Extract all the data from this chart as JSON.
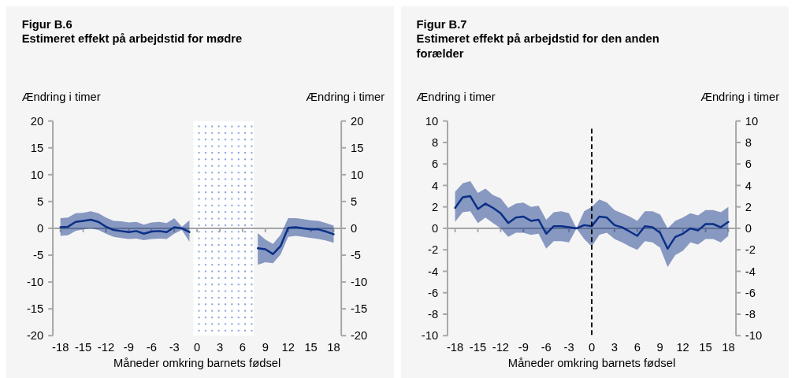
{
  "chart_data": [
    {
      "type": "line",
      "title": "Figur B.6",
      "subtitle": "Estimeret effekt på arbejdstid for mødre",
      "ylabel": "Ændring i timer",
      "y2label": "Ændring i timer",
      "xlabel": "Måneder omkring barnets fødsel",
      "x": [
        -18,
        -17,
        -16,
        -15,
        -14,
        -13,
        -12,
        -11,
        -10,
        -9,
        -8,
        -7,
        -6,
        -5,
        -4,
        -3,
        -2,
        -1,
        0,
        1,
        2,
        3,
        4,
        5,
        6,
        7,
        8,
        9,
        10,
        11,
        12,
        13,
        14,
        15,
        16,
        17,
        18
      ],
      "xlim": [
        -19,
        19
      ],
      "xticks": [
        -18,
        -15,
        -12,
        -9,
        -6,
        -3,
        0,
        3,
        6,
        9,
        12,
        15,
        18
      ],
      "ylim": [
        -20,
        20
      ],
      "yticks": [
        -20,
        -15,
        -10,
        -5,
        0,
        5,
        10,
        15,
        20
      ],
      "y2lim": [
        -20,
        20
      ],
      "y2ticks": [
        -20,
        -15,
        -10,
        -5,
        0,
        5,
        10,
        15,
        20
      ],
      "series": [
        {
          "color": "#0a2f86",
          "values": [
            0.2,
            0.3,
            1.2,
            1.4,
            1.6,
            1.2,
            0.3,
            -0.3,
            -0.5,
            -0.7,
            -0.5,
            -1.0,
            -0.6,
            -0.5,
            -0.7,
            0.2,
            0,
            -0.7,
            null,
            null,
            null,
            null,
            null,
            null,
            null,
            null,
            -3.7,
            -3.9,
            -4.8,
            -3.3,
            0.1,
            0.2,
            0,
            -0.2,
            -0.2,
            -0.6,
            -1.1
          ],
          "upper": [
            1.9,
            2.0,
            2.8,
            2.9,
            3.2,
            2.8,
            2.0,
            1.4,
            1.3,
            1.1,
            1.2,
            0.7,
            1.1,
            1.2,
            1.0,
            1.9,
            0.3,
            1.5,
            null,
            null,
            null,
            null,
            null,
            null,
            null,
            null,
            -0.9,
            -2.1,
            -2.9,
            -1.2,
            1.9,
            1.9,
            1.7,
            1.5,
            1.4,
            1.0,
            0.5
          ],
          "lower": [
            -1.4,
            -1.3,
            -0.5,
            -0.2,
            0,
            -0.3,
            -1.0,
            -1.6,
            -1.8,
            -2.0,
            -1.9,
            -2.2,
            -2.0,
            -1.9,
            -2.0,
            -1.0,
            -0.3,
            -2.5,
            null,
            null,
            null,
            null,
            null,
            null,
            null,
            null,
            -6.8,
            -6.3,
            -6.5,
            -4.9,
            -1.6,
            -1.4,
            -1.6,
            -1.8,
            -2.0,
            -2.3,
            -2.7
          ]
        }
      ],
      "bands": [
        {
          "axis": "x",
          "from": -0.5,
          "to": 7.5,
          "color": "#7f9bd6"
        }
      ]
    },
    {
      "type": "line",
      "title": "Figur B.7",
      "subtitle": "Estimeret effekt på arbejdstid for den anden forælder",
      "ylabel": "Ændring i timer",
      "y2label": "Ændring i timer",
      "xlabel": "Måneder omkring barnets fødsel",
      "x": [
        -18,
        -17,
        -16,
        -15,
        -14,
        -13,
        -12,
        -11,
        -10,
        -9,
        -8,
        -7,
        -6,
        -5,
        -4,
        -3,
        -2,
        -1,
        0,
        1,
        2,
        3,
        4,
        5,
        6,
        7,
        8,
        9,
        10,
        11,
        12,
        13,
        14,
        15,
        16,
        17,
        18
      ],
      "xlim": [
        -19,
        19
      ],
      "xticks": [
        -18,
        -15,
        -12,
        -9,
        -6,
        -3,
        0,
        3,
        6,
        9,
        12,
        15,
        18
      ],
      "ylim": [
        -10,
        10
      ],
      "yticks": [
        -10,
        -8,
        -6,
        -4,
        -2,
        0,
        2,
        4,
        6,
        8,
        10
      ],
      "y2lim": [
        -10,
        10
      ],
      "y2ticks": [
        -10,
        -8,
        -6,
        -4,
        -2,
        0,
        2,
        4,
        6,
        8,
        10
      ],
      "series": [
        {
          "color": "#0a2f86",
          "values": [
            1.9,
            2.9,
            3.0,
            1.8,
            2.3,
            1.9,
            1.4,
            0.5,
            1.0,
            1.1,
            0.7,
            0.8,
            -0.5,
            0.2,
            0.2,
            0.1,
            0,
            0.3,
            0.2,
            1.1,
            1.0,
            0.3,
            0.1,
            -0.3,
            -0.7,
            0.2,
            0.1,
            -0.4,
            -1.9,
            -0.8,
            -0.5,
            0,
            -0.2,
            0.4,
            0.4,
            0.1,
            0.6
          ],
          "upper": [
            3.4,
            4.2,
            4.4,
            3.3,
            3.7,
            3.1,
            2.8,
            1.9,
            2.3,
            2.4,
            2.0,
            2.1,
            0.8,
            1.5,
            1.6,
            1.4,
            0,
            1.6,
            2.0,
            2.7,
            2.4,
            1.7,
            1.4,
            1.1,
            0.7,
            1.6,
            1.6,
            1.3,
            0,
            0.7,
            1.0,
            1.4,
            1.2,
            1.7,
            1.7,
            1.5,
            2.0
          ],
          "lower": [
            0.6,
            1.5,
            1.6,
            0.5,
            1.0,
            0.5,
            0,
            -0.8,
            -0.4,
            -0.4,
            -0.6,
            -0.5,
            -1.9,
            -1.2,
            -1.2,
            -1.3,
            0,
            -1.0,
            -1.7,
            -0.6,
            -0.4,
            -1.0,
            -1.3,
            -1.7,
            -2.0,
            -1.2,
            -1.3,
            -1.8,
            -3.6,
            -2.5,
            -2.1,
            -1.3,
            -1.5,
            -1.0,
            -1.0,
            -1.3,
            -0.7
          ]
        }
      ],
      "ref_lines": [
        {
          "axis": "x",
          "value": 0,
          "color": "#000000",
          "line_style": "dashed"
        }
      ]
    }
  ]
}
